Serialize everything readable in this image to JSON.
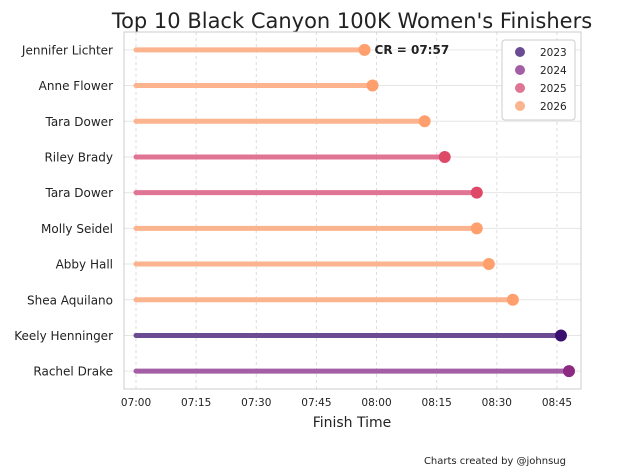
{
  "chart_data": {
    "type": "lollipop",
    "title": "Top 10 Black Canyon 100K Women's Finishers",
    "xlabel": "Finish Time",
    "ylabel": "",
    "x_ticks": [
      "07:00",
      "07:15",
      "07:30",
      "07:45",
      "08:00",
      "08:15",
      "08:30",
      "08:45"
    ],
    "xlim_minutes": [
      417,
      531
    ],
    "start_minutes": 420,
    "grid": true,
    "legend_position": "top-right",
    "legend": [
      {
        "label": "2023",
        "color": "#6b4c93",
        "dot": "#3b0f70"
      },
      {
        "label": "2024",
        "color": "#a35ea5",
        "dot": "#8c2981"
      },
      {
        "label": "2025",
        "color": "#e07494",
        "dot": "#de4968"
      },
      {
        "label": "2026",
        "color": "#fbb48d",
        "dot": "#fe9f6d"
      }
    ],
    "runners": [
      {
        "name": "Jennifer Lichter",
        "time": "07:57",
        "year": "2026"
      },
      {
        "name": "Anne Flower",
        "time": "07:59",
        "year": "2026"
      },
      {
        "name": "Tara Dower",
        "time": "08:12",
        "year": "2026"
      },
      {
        "name": "Riley Brady",
        "time": "08:17",
        "year": "2025"
      },
      {
        "name": "Tara Dower",
        "time": "08:25",
        "year": "2025"
      },
      {
        "name": "Molly Seidel",
        "time": "08:25",
        "year": "2026"
      },
      {
        "name": "Abby Hall",
        "time": "08:28",
        "year": "2026"
      },
      {
        "name": "Shea Aquilano",
        "time": "08:34",
        "year": "2026"
      },
      {
        "name": "Keely Henninger",
        "time": "08:46",
        "year": "2023"
      },
      {
        "name": "Rachel Drake",
        "time": "08:48",
        "year": "2024"
      }
    ],
    "annotation": "CR = 07:57"
  },
  "credit": "Charts created by @johnsug"
}
